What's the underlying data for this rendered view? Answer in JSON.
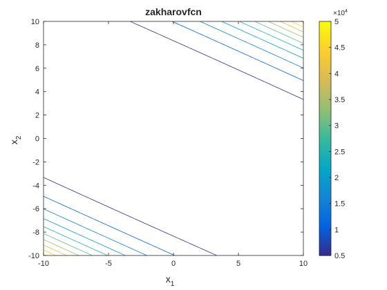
{
  "chart_data": {
    "type": "contour",
    "title": "zakharovfcn",
    "xlabel": {
      "base": "x",
      "sub": "1"
    },
    "ylabel": {
      "base": "x",
      "sub": "2"
    },
    "xlim": [
      -10,
      10
    ],
    "ylim": [
      -10,
      10
    ],
    "xticks": [
      "-10",
      "-5",
      "0",
      "5",
      "10"
    ],
    "yticks": [
      "-10",
      "-8",
      "-6",
      "-4",
      "-2",
      "0",
      "2",
      "4",
      "6",
      "8",
      "10"
    ],
    "levels": [
      5000,
      10000,
      15000,
      20000,
      25000,
      30000,
      35000,
      40000,
      45000,
      50000
    ],
    "grid": false,
    "colorbar": {
      "exponent_label": "×10",
      "exponent": "4",
      "tick_values": [
        0.5,
        1,
        1.5,
        2,
        2.5,
        3,
        3.5,
        4,
        4.5,
        5
      ],
      "tick_labels": [
        "0.5",
        "1",
        "1.5",
        "2",
        "2.5",
        "3",
        "3.5",
        "4",
        "4.5",
        "5"
      ],
      "range": [
        0.5,
        5
      ],
      "colormap": "parula"
    },
    "colors": {
      "parula_stops": [
        "#352a87",
        "#0363e1",
        "#1485d4",
        "#06a7c6",
        "#38b99e",
        "#92bf73",
        "#d9ba56",
        "#fcce2e",
        "#f9fb0e"
      ],
      "axis": "#262626",
      "background": "#ffffff"
    }
  }
}
